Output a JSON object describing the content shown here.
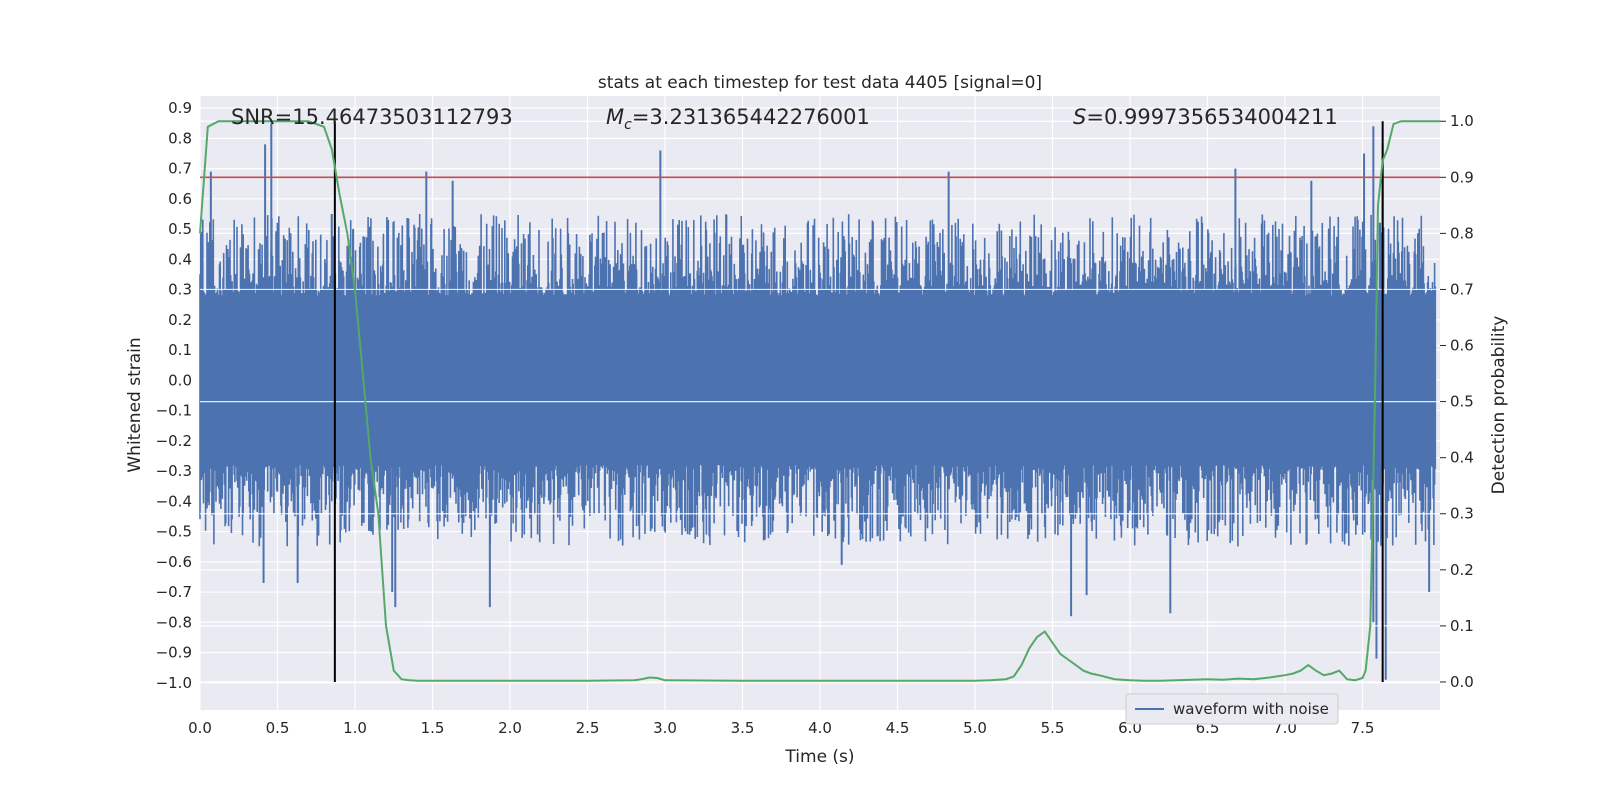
{
  "chart_data": {
    "type": "line",
    "title": "stats at each timestep for test data 4405 [signal=0]",
    "xlabel": "Time (s)",
    "ylabel_left": "Whitened strain",
    "ylabel_right": "Detection probability",
    "xlim": [
      0.0,
      8.0
    ],
    "ylim_left": [
      -1.09,
      0.94
    ],
    "ylim_right": [
      -0.05,
      1.045
    ],
    "x_ticks": [
      0.0,
      0.5,
      1.0,
      1.5,
      2.0,
      2.5,
      3.0,
      3.5,
      4.0,
      4.5,
      5.0,
      5.5,
      6.0,
      6.5,
      7.0,
      7.5
    ],
    "x_tick_labels": [
      "0.0",
      "0.5",
      "1.0",
      "1.5",
      "2.0",
      "2.5",
      "3.0",
      "3.5",
      "4.0",
      "4.5",
      "5.0",
      "5.5",
      "6.0",
      "6.5",
      "7.0",
      "7.5"
    ],
    "y_left_ticks": [
      0.9,
      0.8,
      0.7,
      0.6,
      0.5,
      0.4,
      0.3,
      0.2,
      0.1,
      0.0,
      -0.1,
      -0.2,
      -0.3,
      -0.4,
      -0.5,
      -0.6,
      -0.7,
      -0.8,
      -0.9,
      -1.0
    ],
    "y_left_tick_labels": [
      "0.9",
      "0.8",
      "0.7",
      "0.6",
      "0.5",
      "0.4",
      "0.3",
      "0.2",
      "0.1",
      "0.0",
      "−0.1",
      "−0.2",
      "−0.3",
      "−0.4",
      "−0.5",
      "−0.6",
      "−0.7",
      "−0.8",
      "−0.9",
      "−1.0"
    ],
    "y_right_ticks": [
      1.0,
      0.9,
      0.8,
      0.7,
      0.6,
      0.5,
      0.4,
      0.3,
      0.2,
      0.1,
      0.0
    ],
    "y_right_tick_labels": [
      "1.0",
      "0.9",
      "0.8",
      "0.7",
      "0.6",
      "0.5",
      "0.4",
      "0.3",
      "0.2",
      "0.1",
      "0.0"
    ],
    "annotations": {
      "snr": "SNR=15.46473503112793",
      "mc_symbol": "M",
      "mc_sub": "c",
      "mc_value": "=3.231365442276001",
      "s_symbol": "S",
      "s_value": "=0.9997356534004211"
    },
    "threshold_probability": 0.9,
    "vertical_lines_s": [
      0.87,
      7.63
    ],
    "waveform": {
      "name": "waveform with noise",
      "envelope_core": 0.28,
      "spikes": [
        {
          "t": 0.07,
          "v": 0.69
        },
        {
          "t": 0.42,
          "v": 0.78
        },
        {
          "t": 0.46,
          "v": 0.85
        },
        {
          "t": 0.85,
          "v": 0.55
        },
        {
          "t": 1.46,
          "v": 0.69
        },
        {
          "t": 1.63,
          "v": 0.66
        },
        {
          "t": 2.97,
          "v": 0.76
        },
        {
          "t": 4.83,
          "v": 0.69
        },
        {
          "t": 6.68,
          "v": 0.7
        },
        {
          "t": 7.17,
          "v": 0.66
        },
        {
          "t": 7.51,
          "v": 0.75
        },
        {
          "t": 7.57,
          "v": 0.84
        },
        {
          "t": 7.63,
          "v": 0.78
        },
        {
          "t": 0.41,
          "v": -0.67
        },
        {
          "t": 0.63,
          "v": -0.67
        },
        {
          "t": 1.24,
          "v": -0.7
        },
        {
          "t": 1.26,
          "v": -0.75
        },
        {
          "t": 1.87,
          "v": -0.75
        },
        {
          "t": 4.14,
          "v": -0.61
        },
        {
          "t": 5.62,
          "v": -0.78
        },
        {
          "t": 5.72,
          "v": -0.71
        },
        {
          "t": 6.26,
          "v": -0.77
        },
        {
          "t": 7.57,
          "v": -0.8
        },
        {
          "t": 7.59,
          "v": -0.92
        },
        {
          "t": 7.65,
          "v": -0.99
        },
        {
          "t": 7.93,
          "v": -0.7
        }
      ]
    },
    "probability": {
      "name": "Detection probability",
      "x": [
        0.0,
        0.05,
        0.12,
        0.2,
        0.3,
        0.4,
        0.5,
        0.6,
        0.7,
        0.75,
        0.8,
        0.85,
        0.9,
        0.95,
        1.0,
        1.05,
        1.1,
        1.15,
        1.2,
        1.25,
        1.3,
        1.35,
        1.4,
        1.5,
        1.6,
        1.8,
        2.0,
        2.5,
        2.8,
        2.85,
        2.9,
        2.95,
        3.0,
        3.5,
        4.0,
        4.5,
        5.0,
        5.1,
        5.2,
        5.25,
        5.3,
        5.35,
        5.4,
        5.45,
        5.5,
        5.55,
        5.6,
        5.65,
        5.7,
        5.75,
        5.8,
        5.9,
        6.0,
        6.1,
        6.2,
        6.3,
        6.4,
        6.5,
        6.6,
        6.7,
        6.8,
        6.9,
        7.0,
        7.05,
        7.1,
        7.15,
        7.2,
        7.25,
        7.3,
        7.35,
        7.4,
        7.45,
        7.5,
        7.52,
        7.55,
        7.58,
        7.6,
        7.63,
        7.66,
        7.7,
        7.75,
        7.8,
        8.0
      ],
      "y": [
        0.8,
        0.99,
        1.0,
        1.0,
        1.0,
        1.0,
        1.0,
        1.0,
        1.0,
        0.995,
        0.99,
        0.95,
        0.87,
        0.8,
        0.7,
        0.55,
        0.4,
        0.3,
        0.1,
        0.02,
        0.005,
        0.003,
        0.002,
        0.002,
        0.002,
        0.002,
        0.002,
        0.002,
        0.003,
        0.005,
        0.008,
        0.007,
        0.003,
        0.002,
        0.002,
        0.002,
        0.002,
        0.003,
        0.005,
        0.01,
        0.03,
        0.06,
        0.08,
        0.09,
        0.07,
        0.05,
        0.04,
        0.03,
        0.02,
        0.015,
        0.012,
        0.005,
        0.003,
        0.002,
        0.002,
        0.003,
        0.004,
        0.005,
        0.004,
        0.006,
        0.005,
        0.008,
        0.012,
        0.015,
        0.02,
        0.03,
        0.02,
        0.012,
        0.015,
        0.02,
        0.005,
        0.003,
        0.007,
        0.02,
        0.1,
        0.5,
        0.85,
        0.93,
        0.95,
        0.995,
        1.0,
        1.0,
        1.0
      ]
    },
    "legend": {
      "label": "waveform with noise",
      "loc": "lower-right"
    },
    "grid": true
  },
  "colors": {
    "background": "#eaeaf2",
    "grid": "#ffffff",
    "waveform": "#4c72b0",
    "probability": "#55a868",
    "threshold": "#c44e52",
    "vline": "#000000"
  }
}
